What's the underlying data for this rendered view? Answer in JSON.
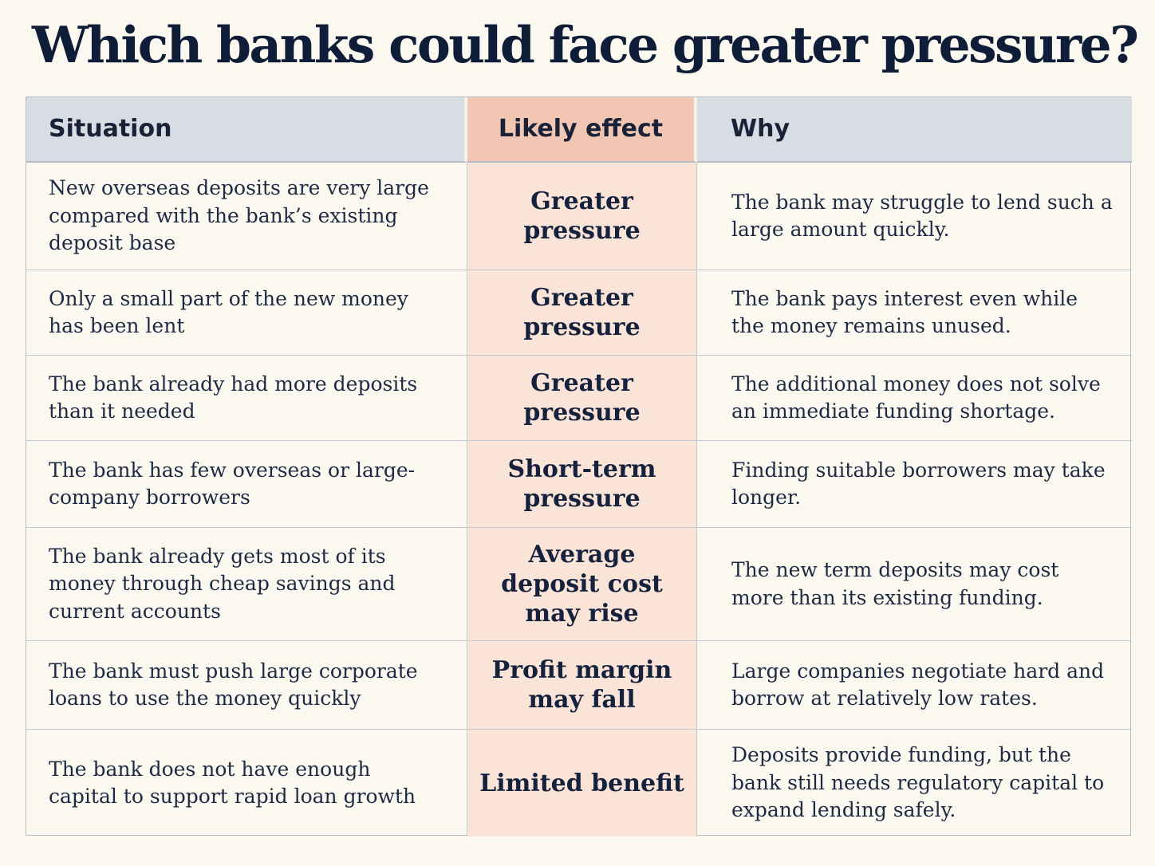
{
  "title": "Which banks could face greater pressure?",
  "headers": {
    "situation": "Situation",
    "effect": "Likely effect",
    "why": "Why"
  },
  "rows": [
    {
      "situation": "New overseas deposits are very large compared with the bank’s existing deposit base",
      "effect": "Greater pressure",
      "why": "The bank may struggle to lend such a large amount quickly."
    },
    {
      "situation": "Only a small part of the new money has been lent",
      "effect": "Greater pressure",
      "why": "The bank pays interest even while the money remains unused."
    },
    {
      "situation": "The bank already had more deposits than it needed",
      "effect": "Greater pressure",
      "why": "The additional money does not solve an immediate funding shortage."
    },
    {
      "situation": "The bank has few overseas or large-company borrowers",
      "effect": "Short-term pressure",
      "why": "Finding suitable borrowers may take longer."
    },
    {
      "situation": "The bank already gets most of its money through cheap savings and current accounts",
      "effect": "Average deposit cost may rise",
      "why": "The new term deposits may cost more than its existing funding."
    },
    {
      "situation": "The bank must push large corporate loans to use the money quickly",
      "effect": "Profit margin may fall",
      "why": "Large companies negotiate hard and borrow at relatively low rates."
    },
    {
      "situation": "The bank does not have enough capital to support rapid loan growth",
      "effect": "Limited benefit",
      "why": "Deposits provide funding, but the bank still needs regulatory capital to expand lending safely."
    }
  ]
}
